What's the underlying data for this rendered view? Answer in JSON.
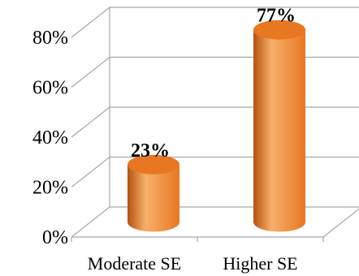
{
  "chart_data": {
    "type": "bar",
    "style": "3d-cylinder",
    "categories": [
      "Moderate SE",
      "Higher SE"
    ],
    "values": [
      23,
      77
    ],
    "data_labels": [
      "23%",
      "77%"
    ],
    "ylim": [
      0,
      80
    ],
    "yticks": [
      "0%",
      "20%",
      "40%",
      "60%",
      "80%"
    ],
    "title": "",
    "xlabel": "",
    "ylabel": "",
    "grid": true,
    "legend": "none",
    "bar_color": "#e87722",
    "bar_highlight": "#f7b06a",
    "bar_shadow": "#b4520f"
  }
}
